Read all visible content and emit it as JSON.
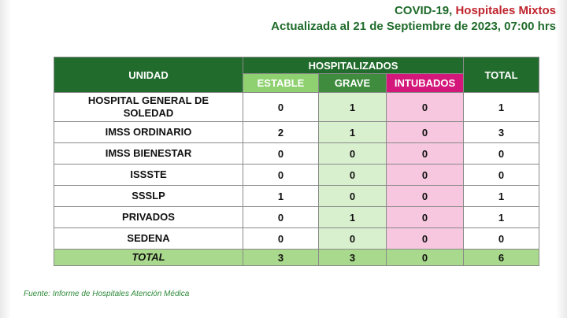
{
  "header": {
    "title_prefix": "COVID-19, ",
    "title_accent": "Hospitales Mixtos",
    "subtitle": "Actualizada al 21 de Septiembre de 2023, 07:00 hrs"
  },
  "colors": {
    "dark_green": "#216b2c",
    "estable_header": "#8fd171",
    "grave_header": "#3f8c3e",
    "intubados_header": "#d4177a",
    "grave_cell": "#d9f0cf",
    "intubados_cell": "#f6c7de",
    "total_row": "#a9d98c",
    "accent_red": "#c0242d"
  },
  "table": {
    "col_unidad": "UNIDAD",
    "col_group": "HOSPITALIZADOS",
    "col_estable": "ESTABLE",
    "col_grave": "GRAVE",
    "col_intubados": "INTUBADOS",
    "col_total": "TOTAL",
    "rows": [
      {
        "unidad": "HOSPITAL GENERAL DE SOLEDAD",
        "estable": "0",
        "grave": "1",
        "intubados": "0",
        "total": "1"
      },
      {
        "unidad": "IMSS ORDINARIO",
        "estable": "2",
        "grave": "1",
        "intubados": "0",
        "total": "3"
      },
      {
        "unidad": "IMSS BIENESTAR",
        "estable": "0",
        "grave": "0",
        "intubados": "0",
        "total": "0"
      },
      {
        "unidad": "ISSSTE",
        "estable": "0",
        "grave": "0",
        "intubados": "0",
        "total": "0"
      },
      {
        "unidad": "SSSLP",
        "estable": "1",
        "grave": "0",
        "intubados": "0",
        "total": "1"
      },
      {
        "unidad": "PRIVADOS",
        "estable": "0",
        "grave": "1",
        "intubados": "0",
        "total": "1"
      },
      {
        "unidad": "SEDENA",
        "estable": "0",
        "grave": "0",
        "intubados": "0",
        "total": "0"
      }
    ],
    "totals": {
      "unidad": "TOTAL",
      "estable": "3",
      "grave": "3",
      "intubados": "0",
      "total": "6"
    }
  },
  "source": "Fuente: Informe de Hospitales Atención Médica"
}
